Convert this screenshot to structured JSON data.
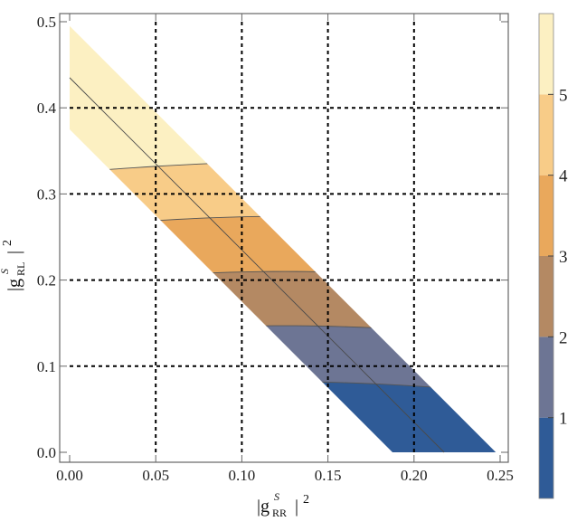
{
  "chart_data": {
    "type": "contour",
    "x_axis": {
      "label_main": "|g",
      "label_sup": "S",
      "label_sub": "RR",
      "label_close": "|",
      "label_power": "2",
      "range": [
        0,
        0.25
      ],
      "ticks": [
        0.0,
        0.05,
        0.1,
        0.15,
        0.2,
        0.25
      ],
      "tick_labels": [
        "0.00",
        "0.05",
        "0.10",
        "0.15",
        "0.20",
        "0.25"
      ]
    },
    "y_axis": {
      "label_main": "|g",
      "label_sup": "S",
      "label_sub": "RL",
      "label_close": "|",
      "label_power": "2",
      "range": [
        0,
        0.5
      ],
      "ticks": [
        0.0,
        0.1,
        0.2,
        0.3,
        0.4,
        0.5
      ],
      "tick_labels": [
        "0.0",
        "0.1",
        "0.2",
        "0.3",
        "0.4",
        "0.5"
      ]
    },
    "grid": "dashed",
    "band": {
      "lower_edge": [
        [
          0.0,
          0.375
        ],
        [
          0.1875,
          0.0
        ]
      ],
      "upper_edge": [
        [
          0.0,
          0.495
        ],
        [
          0.2475,
          0.0
        ]
      ],
      "center_line": [
        [
          0.0,
          0.435
        ],
        [
          0.2175,
          0.0
        ]
      ]
    },
    "contour_levels": [
      {
        "level": 1,
        "color": "#2f5b97",
        "y_range": [
          0.0,
          0.07
        ]
      },
      {
        "level": 2,
        "color": "#6d7594",
        "y_range": [
          0.07,
          0.135
        ]
      },
      {
        "level": 3,
        "color": "#b48963",
        "y_range": [
          0.135,
          0.198
        ]
      },
      {
        "level": 4,
        "color": "#e9a85c",
        "y_range": [
          0.198,
          0.262
        ]
      },
      {
        "level": 5,
        "color": "#f8cc88",
        "y_range": [
          0.262,
          0.325
        ]
      },
      {
        "level": 6,
        "color": "#fcf0c2",
        "y_range": [
          0.325,
          0.5
        ]
      }
    ],
    "colorbar": {
      "labels": [
        "1",
        "2",
        "3",
        "4",
        "5"
      ],
      "colors": [
        "#2f5b97",
        "#6d7594",
        "#b48963",
        "#e9a85c",
        "#f8cc88",
        "#fcf0c2"
      ]
    }
  }
}
